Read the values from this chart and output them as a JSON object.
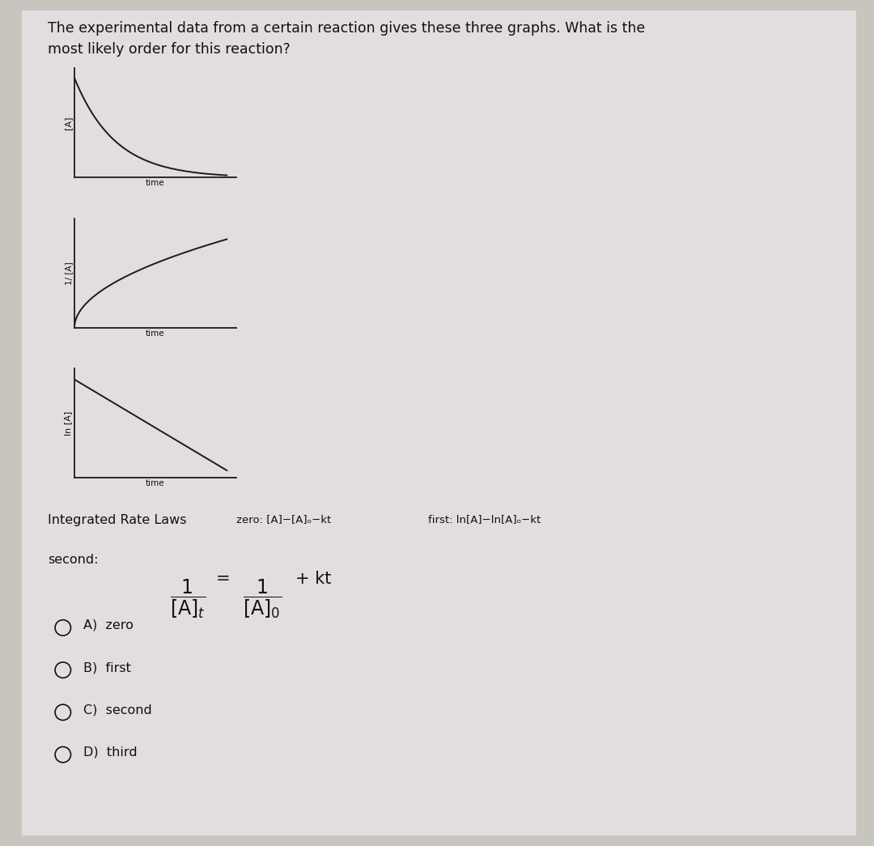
{
  "bg_color": "#c8c4be",
  "card_color": "#e2dedd",
  "title_line1": "The experimental data from a certain reaction gives these three graphs. What is the",
  "title_line2": "most likely order for this reaction?",
  "title_fontsize": 12.5,
  "graph1_ylabel": "[A]",
  "graph2_ylabel": "1/ [A]",
  "graph3_ylabel": "ln [A]",
  "xlabel": "time",
  "integrated_title": "Integrated Rate Laws",
  "zero_law": "zero: [A]−[A]ₒ−kt",
  "first_law": "first: ln[A]−ln[A]ₒ−kt",
  "line_color": "#1a1a1a",
  "axis_color": "#1a1a1a",
  "text_color": "#111111"
}
